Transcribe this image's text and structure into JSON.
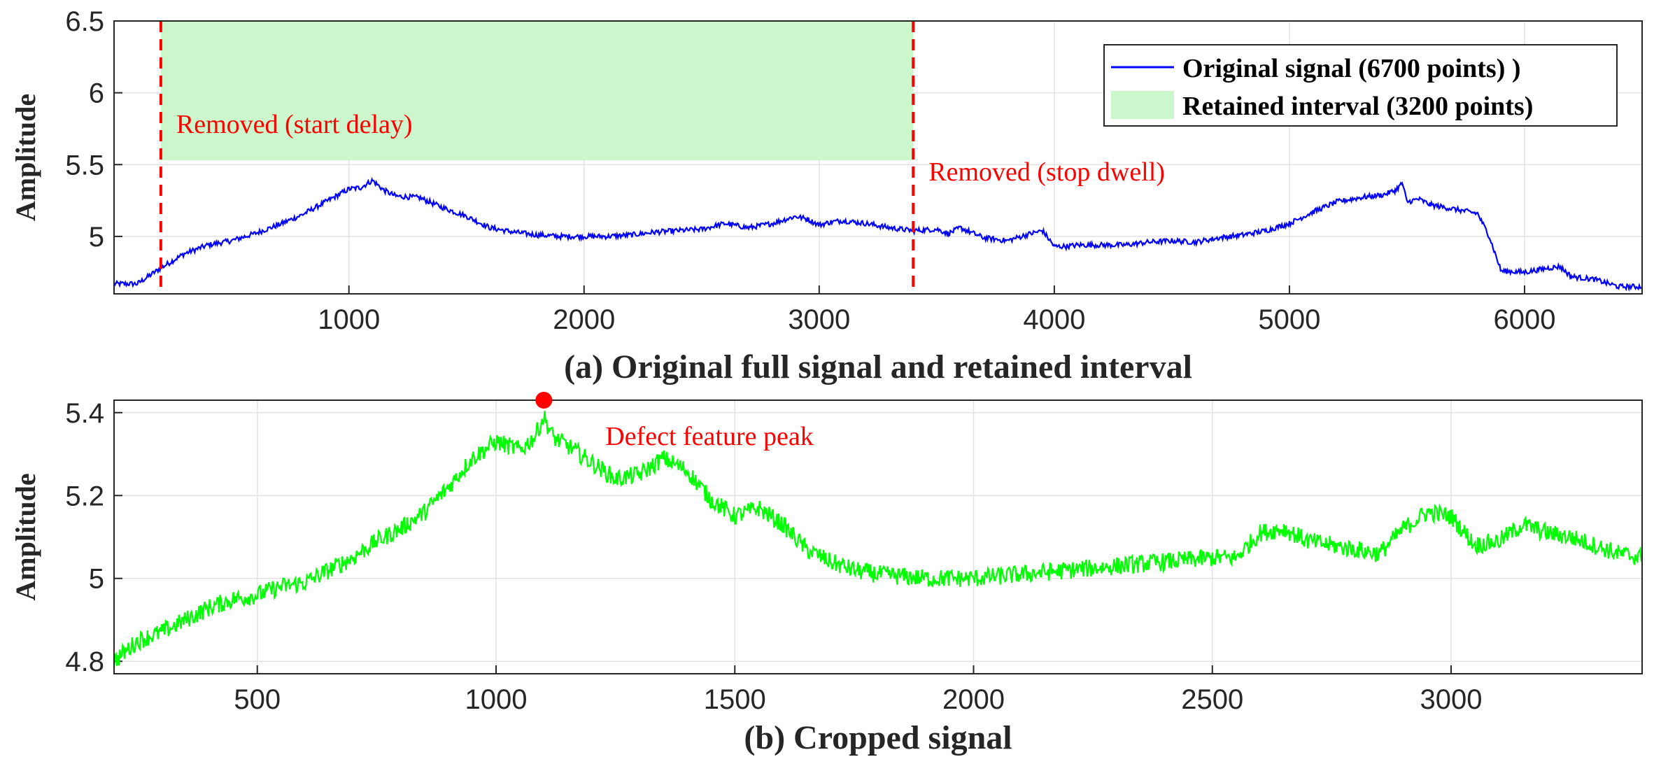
{
  "chart_data": [
    {
      "type": "line",
      "caption": "(a) Original full signal and retained interval",
      "ylabel": "Amplitude",
      "xlabel": "",
      "xlim": [
        1,
        6500
      ],
      "ylim": [
        4.6,
        6.5
      ],
      "xticks": [
        1000,
        2000,
        3000,
        4000,
        5000,
        6000
      ],
      "yticks": [
        5,
        5.5,
        6,
        6.5
      ],
      "xtick_labels": [
        "1000",
        "2000",
        "3000",
        "4000",
        "5000",
        "6000"
      ],
      "ytick_labels": [
        "5",
        "5.5",
        "6",
        "6.5"
      ],
      "grid": true,
      "legend_position": "top-right",
      "series": [
        {
          "name": "Original signal (6700 points) )",
          "color": "#0000ff",
          "noise": 0.018,
          "x": [
            1,
            100,
            200,
            300,
            400,
            500,
            600,
            700,
            800,
            900,
            1000,
            1050,
            1100,
            1150,
            1200,
            1300,
            1400,
            1500,
            1600,
            1700,
            1800,
            1900,
            2000,
            2100,
            2200,
            2300,
            2400,
            2500,
            2600,
            2700,
            2800,
            2900,
            2950,
            3000,
            3050,
            3100,
            3200,
            3300,
            3400,
            3500,
            3550,
            3600,
            3700,
            3800,
            3900,
            3950,
            4000,
            4050,
            4100,
            4200,
            4300,
            4400,
            4500,
            4600,
            4700,
            4800,
            4900,
            5000,
            5100,
            5200,
            5300,
            5400,
            5450,
            5480,
            5500,
            5550,
            5600,
            5700,
            5800,
            5850,
            5900,
            6000,
            6100,
            6150,
            6200,
            6300,
            6400,
            6500
          ],
          "y": [
            4.67,
            4.67,
            4.78,
            4.88,
            4.94,
            4.97,
            5.02,
            5.08,
            5.15,
            5.24,
            5.33,
            5.34,
            5.39,
            5.32,
            5.28,
            5.27,
            5.2,
            5.14,
            5.06,
            5.03,
            5.01,
            5.0,
            5.0,
            5.0,
            5.01,
            5.03,
            5.04,
            5.05,
            5.09,
            5.06,
            5.09,
            5.14,
            5.12,
            5.08,
            5.1,
            5.11,
            5.09,
            5.06,
            5.04,
            5.05,
            5.02,
            5.06,
            4.99,
            4.97,
            5.02,
            5.04,
            4.93,
            4.93,
            4.94,
            4.94,
            4.94,
            4.96,
            4.97,
            4.96,
            4.99,
            5.01,
            5.04,
            5.09,
            5.17,
            5.24,
            5.27,
            5.29,
            5.32,
            5.37,
            5.24,
            5.26,
            5.22,
            5.19,
            5.16,
            5.0,
            4.76,
            4.75,
            4.78,
            4.79,
            4.72,
            4.7,
            4.65,
            4.65
          ]
        }
      ],
      "retained_interval": {
        "label": "Retained interval (3200 points)",
        "x_start": 200,
        "x_end": 3400,
        "y_bottom": 5.53,
        "y_top": 6.5,
        "fill": "#ccf7cc"
      },
      "markers": [
        {
          "x": 200,
          "color": "#ff0000",
          "label": "Removed (start delay)"
        },
        {
          "x": 3400,
          "color": "#ff0000",
          "label": "Removed (stop dwell)"
        }
      ]
    },
    {
      "type": "line",
      "caption": "(b) Cropped signal",
      "ylabel": "Amplitude",
      "xlabel": "",
      "xlim": [
        200,
        3400
      ],
      "ylim": [
        4.77,
        5.43
      ],
      "xticks": [
        500,
        1000,
        1500,
        2000,
        2500,
        3000
      ],
      "yticks": [
        4.8,
        5,
        5.2,
        5.4
      ],
      "xtick_labels": [
        "500",
        "1000",
        "1500",
        "2000",
        "2500",
        "3000"
      ],
      "ytick_labels": [
        "4.8",
        "5",
        "5.2",
        "5.4"
      ],
      "grid": true,
      "series": [
        {
          "color": "#00ff00",
          "noise": 0.022,
          "x": [
            200,
            250,
            300,
            350,
            400,
            450,
            500,
            550,
            600,
            650,
            700,
            750,
            800,
            850,
            900,
            950,
            1000,
            1050,
            1080,
            1100,
            1120,
            1150,
            1200,
            1250,
            1300,
            1350,
            1400,
            1450,
            1500,
            1550,
            1600,
            1650,
            1700,
            1750,
            1800,
            1900,
            2000,
            2100,
            2200,
            2300,
            2400,
            2500,
            2550,
            2600,
            2650,
            2700,
            2750,
            2800,
            2850,
            2900,
            2950,
            3000,
            3050,
            3100,
            3150,
            3200,
            3250,
            3300,
            3350,
            3400
          ],
          "y": [
            4.8,
            4.85,
            4.87,
            4.9,
            4.93,
            4.95,
            4.96,
            4.98,
            4.99,
            5.02,
            5.05,
            5.09,
            5.12,
            5.16,
            5.22,
            5.29,
            5.33,
            5.31,
            5.34,
            5.39,
            5.34,
            5.32,
            5.28,
            5.24,
            5.25,
            5.29,
            5.26,
            5.19,
            5.15,
            5.17,
            5.13,
            5.07,
            5.04,
            5.02,
            5.01,
            5.0,
            5.0,
            5.01,
            5.02,
            5.03,
            5.04,
            5.05,
            5.05,
            5.11,
            5.12,
            5.09,
            5.08,
            5.07,
            5.06,
            5.12,
            5.16,
            5.15,
            5.08,
            5.09,
            5.13,
            5.11,
            5.1,
            5.08,
            5.06,
            5.05
          ]
        }
      ],
      "peak": {
        "x": 1100,
        "y": 5.43,
        "color": "#ff0000",
        "label": "Defect feature peak"
      }
    }
  ]
}
